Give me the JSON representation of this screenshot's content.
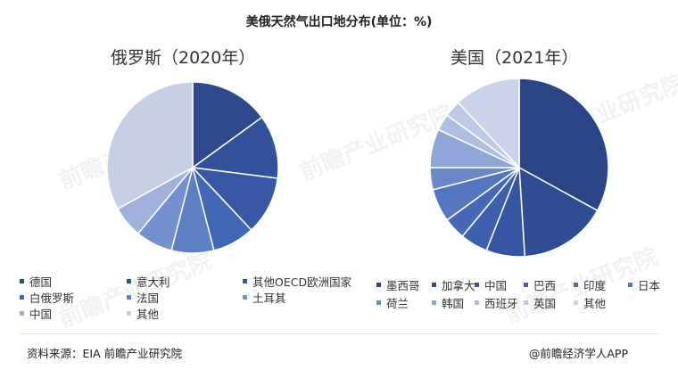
{
  "title": "美俄天然气出口地分布(单位：%)",
  "source": "资料来源：EIA 前瞻产业研究院",
  "brand": "@前瞻经济学人APP",
  "watermark": "前瞻产业研究院",
  "chart_data": [
    {
      "type": "pie",
      "subtitle": "俄罗斯（2020年）",
      "slices": [
        {
          "label": "德国",
          "value": 15,
          "color": "#2e4a8c"
        },
        {
          "label": "意大利",
          "value": 12,
          "color": "#31519a"
        },
        {
          "label": "其他OECD欧洲国家",
          "value": 11,
          "color": "#3858a5"
        },
        {
          "label": "白俄罗斯",
          "value": 8,
          "color": "#4168b6"
        },
        {
          "label": "法国",
          "value": 8,
          "color": "#5d7fc4"
        },
        {
          "label": "土耳其",
          "value": 7,
          "color": "#7391cf"
        },
        {
          "label": "中国",
          "value": 6,
          "color": "#9fb1dc"
        },
        {
          "label": "其他",
          "value": 33,
          "color": "#c7cfe6"
        }
      ],
      "legend_rows": [
        [
          "德国",
          "意大利",
          "其他OECD欧洲国家"
        ],
        [
          "白俄罗斯",
          "法国",
          "土耳其"
        ],
        [
          "中国",
          "其他"
        ]
      ]
    },
    {
      "type": "pie",
      "subtitle": "美国（2021年）",
      "slices": [
        {
          "label": "墨西哥",
          "value": 33,
          "color": "#2a4585"
        },
        {
          "label": "加拿大",
          "value": 16,
          "color": "#2f4d94"
        },
        {
          "label": "中国",
          "value": 7,
          "color": "#3556a2"
        },
        {
          "label": "巴西",
          "value": 5,
          "color": "#3c5fae"
        },
        {
          "label": "印度",
          "value": 4,
          "color": "#4668b8"
        },
        {
          "label": "日本",
          "value": 6,
          "color": "#5476bf"
        },
        {
          "label": "荷兰",
          "value": 4,
          "color": "#6a88c8"
        },
        {
          "label": "韩国",
          "value": 7,
          "color": "#8fa6d8"
        },
        {
          "label": "西班牙",
          "value": 3,
          "color": "#aebee2"
        },
        {
          "label": "英国",
          "value": 3,
          "color": "#bdc9e6"
        },
        {
          "label": "其他",
          "value": 12,
          "color": "#cad3ea"
        }
      ],
      "legend_rows": [
        [
          "墨西哥",
          "加拿大",
          "中国",
          "巴西",
          "印度",
          "日本"
        ],
        [
          "荷兰",
          "韩国",
          "西班牙",
          "英国",
          "其他"
        ]
      ]
    }
  ]
}
